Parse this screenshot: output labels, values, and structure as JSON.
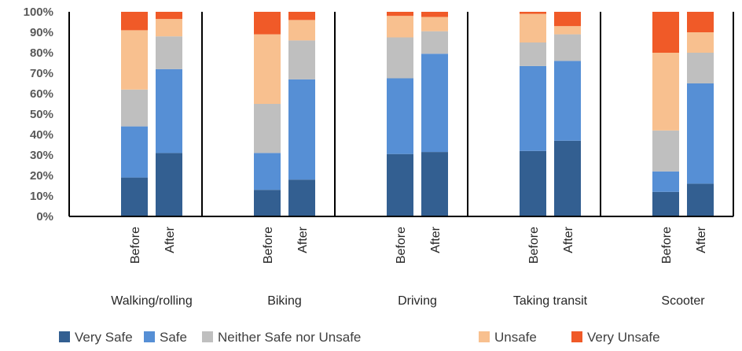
{
  "colors": {
    "very_safe": "#335f91",
    "safe": "#568fd5",
    "neither": "#bfbfbf",
    "unsafe": "#f8c08f",
    "very_unsafe": "#f05a28",
    "axis": "#000000",
    "tick_text": "#595959"
  },
  "chart_data": {
    "type": "bar",
    "stacked": true,
    "percent_stacked": true,
    "ylim": [
      0,
      100
    ],
    "yticks": [
      "0%",
      "10%",
      "20%",
      "30%",
      "40%",
      "50%",
      "60%",
      "70%",
      "80%",
      "90%",
      "100%"
    ],
    "ytick_values": [
      0,
      10,
      20,
      30,
      40,
      50,
      60,
      70,
      80,
      90,
      100
    ],
    "groups": [
      "Walking/rolling",
      "Biking",
      "Driving",
      "Taking transit",
      "Scooter"
    ],
    "subcategories": [
      "Before",
      "After"
    ],
    "series": [
      {
        "name": "Very Safe",
        "color": "#335f91",
        "values": [
          [
            19,
            31
          ],
          [
            13,
            18
          ],
          [
            30.5,
            31.5
          ],
          [
            32,
            37
          ],
          [
            12,
            16
          ]
        ]
      },
      {
        "name": "Safe",
        "color": "#568fd5",
        "values": [
          [
            25,
            41
          ],
          [
            18,
            49
          ],
          [
            37,
            48
          ],
          [
            41.5,
            39
          ],
          [
            10,
            49
          ]
        ]
      },
      {
        "name": "Neither Safe nor Unsafe",
        "color": "#bfbfbf",
        "values": [
          [
            18,
            16
          ],
          [
            24,
            19
          ],
          [
            20,
            11
          ],
          [
            11.5,
            13
          ],
          [
            20,
            15
          ]
        ]
      },
      {
        "name": "Unsafe",
        "color": "#f8c08f",
        "values": [
          [
            29,
            8.5
          ],
          [
            34,
            10
          ],
          [
            10.5,
            7
          ],
          [
            14,
            4
          ],
          [
            38,
            10
          ]
        ]
      },
      {
        "name": "Very Unsafe",
        "color": "#f05a28",
        "values": [
          [
            9,
            3.5
          ],
          [
            11,
            4
          ],
          [
            2,
            2.5
          ],
          [
            1,
            7
          ],
          [
            20,
            10
          ]
        ]
      }
    ],
    "legend_position": "bottom",
    "grid": false,
    "group_separators": true
  }
}
